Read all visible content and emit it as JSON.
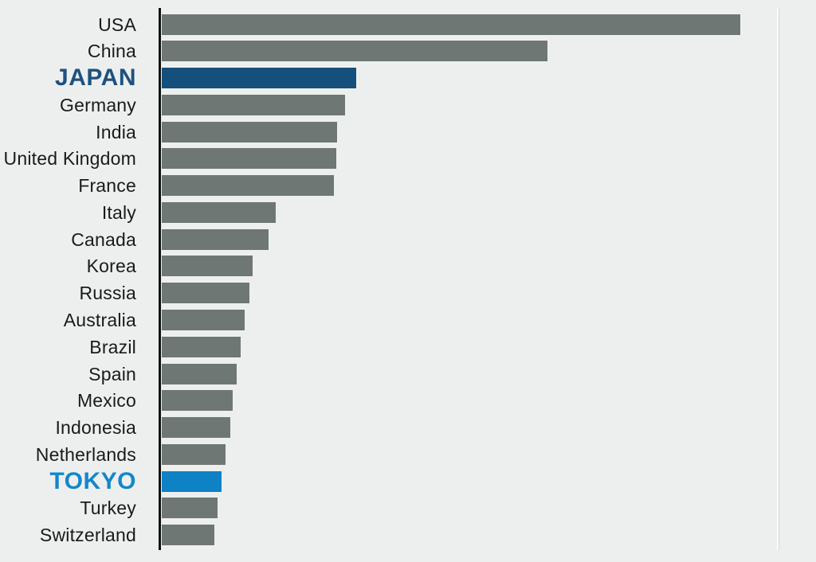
{
  "chart_data": {
    "type": "bar",
    "orientation": "horizontal",
    "title": "",
    "xlabel": "",
    "ylabel": "",
    "axis_ticks_visible": false,
    "legend": "none",
    "value_scale_note": "No numeric axis shown; values are relative bar lengths normalized to USA = 100",
    "xlim": [
      0,
      103
    ],
    "baseline_axis_color": "#101314",
    "background_color": "#edefee",
    "default_bar_color": "#6f7774",
    "categories": [
      "USA",
      "China",
      "JAPAN",
      "Germany",
      "India",
      "United Kingdom",
      "France",
      "Italy",
      "Canada",
      "Korea",
      "Russia",
      "Australia",
      "Brazil",
      "Spain",
      "Mexico",
      "Indonesia",
      "Netherlands",
      "TOKYO",
      "Turkey",
      "Switzerland"
    ],
    "values": [
      100,
      66.7,
      33.6,
      31.7,
      30.3,
      30.2,
      29.8,
      19.7,
      18.5,
      15.7,
      15.2,
      14.3,
      13.6,
      12.9,
      12.3,
      11.8,
      11.0,
      10.3,
      9.6,
      9.1
    ],
    "highlights": [
      {
        "category": "JAPAN",
        "bar_color": "#15507c",
        "label_color": "#1d527f"
      },
      {
        "category": "TOKYO",
        "bar_color": "#0f81c5",
        "label_color": "#1387cb"
      }
    ]
  },
  "rows": [
    {
      "label": "USA",
      "value": 100,
      "emphasized": false,
      "bar_color": "#6f7774",
      "label_color": "#1a1a1a"
    },
    {
      "label": "China",
      "value": 66.7,
      "emphasized": false,
      "bar_color": "#6f7774",
      "label_color": "#1a1a1a"
    },
    {
      "label": "JAPAN",
      "value": 33.6,
      "emphasized": true,
      "bar_color": "#15507c",
      "label_color": "#1d527f"
    },
    {
      "label": "Germany",
      "value": 31.7,
      "emphasized": false,
      "bar_color": "#6f7774",
      "label_color": "#1a1a1a"
    },
    {
      "label": "India",
      "value": 30.3,
      "emphasized": false,
      "bar_color": "#6f7774",
      "label_color": "#1a1a1a"
    },
    {
      "label": "United Kingdom",
      "value": 30.2,
      "emphasized": false,
      "bar_color": "#6f7774",
      "label_color": "#1a1a1a"
    },
    {
      "label": "France",
      "value": 29.8,
      "emphasized": false,
      "bar_color": "#6f7774",
      "label_color": "#1a1a1a"
    },
    {
      "label": "Italy",
      "value": 19.7,
      "emphasized": false,
      "bar_color": "#6f7774",
      "label_color": "#1a1a1a"
    },
    {
      "label": "Canada",
      "value": 18.5,
      "emphasized": false,
      "bar_color": "#6f7774",
      "label_color": "#1a1a1a"
    },
    {
      "label": "Korea",
      "value": 15.7,
      "emphasized": false,
      "bar_color": "#6f7774",
      "label_color": "#1a1a1a"
    },
    {
      "label": "Russia",
      "value": 15.2,
      "emphasized": false,
      "bar_color": "#6f7774",
      "label_color": "#1a1a1a"
    },
    {
      "label": "Australia",
      "value": 14.3,
      "emphasized": false,
      "bar_color": "#6f7774",
      "label_color": "#1a1a1a"
    },
    {
      "label": "Brazil",
      "value": 13.6,
      "emphasized": false,
      "bar_color": "#6f7774",
      "label_color": "#1a1a1a"
    },
    {
      "label": "Spain",
      "value": 12.9,
      "emphasized": false,
      "bar_color": "#6f7774",
      "label_color": "#1a1a1a"
    },
    {
      "label": "Mexico",
      "value": 12.3,
      "emphasized": false,
      "bar_color": "#6f7774",
      "label_color": "#1a1a1a"
    },
    {
      "label": "Indonesia",
      "value": 11.8,
      "emphasized": false,
      "bar_color": "#6f7774",
      "label_color": "#1a1a1a"
    },
    {
      "label": "Netherlands",
      "value": 11.0,
      "emphasized": false,
      "bar_color": "#6f7774",
      "label_color": "#1a1a1a"
    },
    {
      "label": "TOKYO",
      "value": 10.3,
      "emphasized": true,
      "bar_color": "#0f81c5",
      "label_color": "#1387cb"
    },
    {
      "label": "Turkey",
      "value": 9.6,
      "emphasized": false,
      "bar_color": "#6f7774",
      "label_color": "#1a1a1a"
    },
    {
      "label": "Switzerland",
      "value": 9.1,
      "emphasized": false,
      "bar_color": "#6f7774",
      "label_color": "#1a1a1a"
    }
  ]
}
